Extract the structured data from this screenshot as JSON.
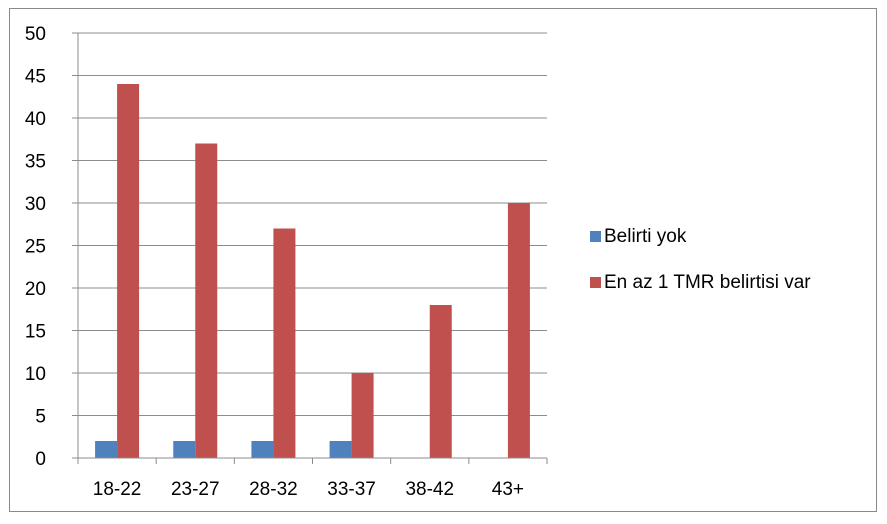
{
  "chart_data": {
    "type": "bar",
    "categories": [
      "18-22",
      "23-27",
      "28-32",
      "33-37",
      "38-42",
      "43+"
    ],
    "series": [
      {
        "name": "Belirti yok",
        "values": [
          2,
          2,
          2,
          2,
          0,
          0
        ],
        "color": "#4f81bd"
      },
      {
        "name": "En az 1 TMR belirtisi var",
        "values": [
          44,
          37,
          27,
          10,
          18,
          30
        ],
        "color": "#c0504d"
      }
    ],
    "ylim": [
      0,
      50
    ],
    "yticks": [
      0,
      5,
      10,
      15,
      20,
      25,
      30,
      35,
      40,
      45,
      50
    ],
    "grid": true,
    "legend_position": "right",
    "title": "",
    "xlabel": "",
    "ylabel": ""
  }
}
